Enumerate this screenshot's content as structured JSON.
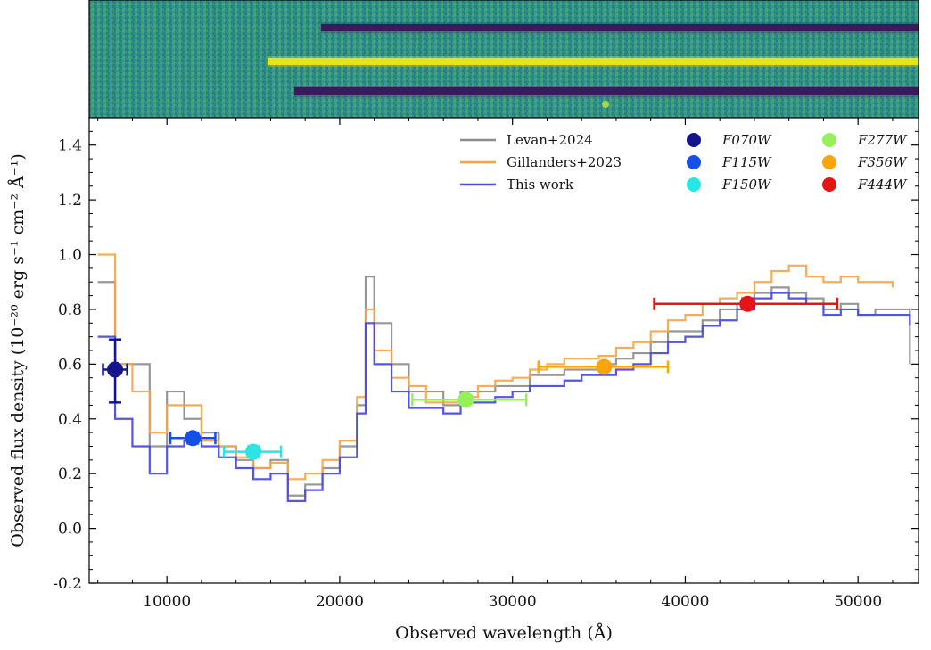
{
  "chart_data": {
    "type": "line",
    "xlabel": "Observed wavelength (Å)",
    "ylabel": "Observed flux density (10⁻²⁰ erg s⁻¹ cm⁻² Å⁻¹)",
    "xlim": [
      5500,
      53500
    ],
    "ylim": [
      -0.2,
      1.5
    ],
    "x_ticks": [
      10000,
      20000,
      30000,
      40000,
      50000
    ],
    "x_tick_labels": [
      "10000",
      "20000",
      "30000",
      "40000",
      "50000"
    ],
    "y_ticks": [
      -0.2,
      0.0,
      0.2,
      0.4,
      0.6,
      0.8,
      1.0,
      1.2,
      1.4
    ],
    "y_tick_labels": [
      "-0.2",
      "0.0",
      "0.2",
      "0.4",
      "0.6",
      "0.8",
      "1.0",
      "1.2",
      "1.4"
    ],
    "legend_placement": "top-center-right",
    "series": [
      {
        "name": "Levan+2024",
        "color": "#8c8c8c",
        "x": [
          6000,
          7000,
          8000,
          9000,
          10000,
          11000,
          12000,
          13000,
          14000,
          15000,
          16000,
          17000,
          18000,
          19000,
          20000,
          21000,
          21500,
          22000,
          23000,
          24000,
          25000,
          26000,
          27000,
          28000,
          29000,
          30000,
          31000,
          32000,
          33000,
          34000,
          35000,
          36000,
          37000,
          38000,
          39000,
          40000,
          41000,
          42000,
          43000,
          44000,
          45000,
          46000,
          47000,
          48000,
          49000,
          50000,
          51000,
          52000,
          53000
        ],
        "y": [
          0.9,
          0.6,
          0.6,
          0.3,
          0.5,
          0.4,
          0.35,
          0.3,
          0.25,
          0.22,
          0.25,
          0.12,
          0.16,
          0.22,
          0.3,
          0.45,
          0.92,
          0.75,
          0.6,
          0.5,
          0.5,
          0.45,
          0.5,
          0.5,
          0.52,
          0.52,
          0.56,
          0.56,
          0.58,
          0.58,
          0.6,
          0.62,
          0.64,
          0.68,
          0.72,
          0.72,
          0.76,
          0.8,
          0.82,
          0.86,
          0.88,
          0.86,
          0.84,
          0.8,
          0.82,
          0.78,
          0.8,
          0.8,
          0.6
        ]
      },
      {
        "name": "Gillanders+2023",
        "color": "#f5a445",
        "x": [
          6000,
          7000,
          8000,
          9000,
          10000,
          11000,
          12000,
          13000,
          14000,
          15000,
          16000,
          17000,
          18000,
          19000,
          20000,
          21000,
          21500,
          22000,
          23000,
          24000,
          25000,
          26000,
          27000,
          28000,
          29000,
          30000,
          31000,
          32000,
          33000,
          34000,
          35000,
          36000,
          37000,
          38000,
          39000,
          40000,
          41000,
          42000,
          43000,
          44000,
          45000,
          46000,
          47000,
          48000,
          49000,
          50000,
          51000,
          52000
        ],
        "y": [
          1.0,
          0.6,
          0.5,
          0.35,
          0.45,
          0.45,
          0.32,
          0.3,
          0.26,
          0.22,
          0.24,
          0.18,
          0.2,
          0.25,
          0.32,
          0.48,
          0.8,
          0.65,
          0.55,
          0.52,
          0.46,
          0.46,
          0.48,
          0.52,
          0.54,
          0.55,
          0.58,
          0.6,
          0.62,
          0.62,
          0.63,
          0.66,
          0.68,
          0.72,
          0.76,
          0.78,
          0.82,
          0.84,
          0.86,
          0.9,
          0.94,
          0.96,
          0.92,
          0.9,
          0.92,
          0.9,
          0.9,
          0.88
        ]
      },
      {
        "name": "This work",
        "color": "#4b4be6",
        "x": [
          6000,
          7000,
          8000,
          9000,
          10000,
          11000,
          12000,
          13000,
          14000,
          15000,
          16000,
          17000,
          18000,
          19000,
          20000,
          21000,
          21500,
          22000,
          23000,
          24000,
          25000,
          26000,
          27000,
          28000,
          29000,
          30000,
          31000,
          32000,
          33000,
          34000,
          35000,
          36000,
          37000,
          38000,
          39000,
          40000,
          41000,
          42000,
          43000,
          44000,
          45000,
          46000,
          47000,
          48000,
          49000,
          50000,
          51000,
          52000,
          53000
        ],
        "y": [
          0.7,
          0.4,
          0.3,
          0.2,
          0.3,
          0.32,
          0.3,
          0.26,
          0.22,
          0.18,
          0.2,
          0.1,
          0.14,
          0.2,
          0.26,
          0.42,
          0.75,
          0.6,
          0.5,
          0.44,
          0.44,
          0.42,
          0.46,
          0.46,
          0.48,
          0.5,
          0.52,
          0.52,
          0.54,
          0.56,
          0.56,
          0.58,
          0.6,
          0.64,
          0.68,
          0.7,
          0.74,
          0.76,
          0.8,
          0.84,
          0.86,
          0.84,
          0.82,
          0.78,
          0.8,
          0.78,
          0.78,
          0.78,
          0.74
        ]
      }
    ],
    "photometry": [
      {
        "name": "F070W",
        "color": "#14148c",
        "x": 7000,
        "y": 0.58,
        "xerr": [
          6300,
          7700
        ],
        "yerr": [
          0.46,
          0.69
        ]
      },
      {
        "name": "F115W",
        "color": "#1450e6",
        "x": 11500,
        "y": 0.33,
        "xerr": [
          10200,
          12800
        ],
        "yerr": [
          0.31,
          0.35
        ]
      },
      {
        "name": "F150W",
        "color": "#28e6e6",
        "x": 15000,
        "y": 0.28,
        "xerr": [
          13300,
          16600
        ],
        "yerr": [
          0.26,
          0.3
        ]
      },
      {
        "name": "F277W",
        "color": "#96f05a",
        "x": 27300,
        "y": 0.47,
        "xerr": [
          24200,
          30800
        ],
        "yerr": [
          0.46,
          0.48
        ]
      },
      {
        "name": "F356W",
        "color": "#faa50a",
        "x": 35300,
        "y": 0.59,
        "xerr": [
          31500,
          39000
        ],
        "yerr": [
          0.58,
          0.6
        ]
      },
      {
        "name": "F444W",
        "color": "#e61414",
        "x": 43600,
        "y": 0.82,
        "xerr": [
          38200,
          48800
        ],
        "yerr": [
          0.8,
          0.84
        ]
      }
    ]
  }
}
